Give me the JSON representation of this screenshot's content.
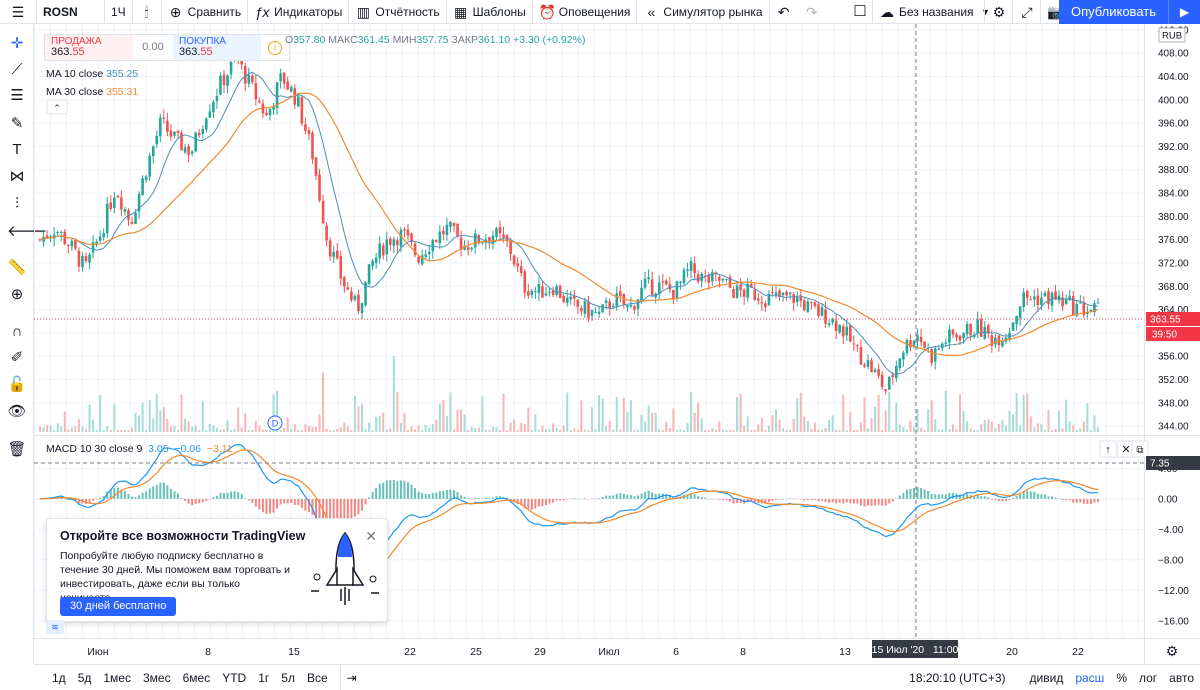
{
  "toolbar": {
    "menu_icon": "hamburger-icon",
    "symbol": "ROSN",
    "interval": "1Ч",
    "compare": "Сравнить",
    "indicators": "Индикаторы",
    "reports": "Отчётность",
    "templates": "Шаблоны",
    "alerts": "Оповещения",
    "replay": "Симулятор рынка",
    "layout_name": "Без названия",
    "publish": "Опубликовать"
  },
  "trade": {
    "sell_label": "ПРОДАЖА",
    "sell_int": "363.",
    "sell_dec": "55",
    "spread": "0.00",
    "buy_label": "ПОКУПКА",
    "buy_int": "363.",
    "buy_dec": "55"
  },
  "ohlc": {
    "o_label": "О",
    "o": "357.80",
    "h_label": "МАКС",
    "h": "361.45",
    "l_label": "МИН",
    "l": "357.75",
    "c_label": "ЗАКР",
    "c": "361.10",
    "chg": "+3.30 (+0.92%)"
  },
  "ma10": {
    "label": "MA 10 close",
    "value": "355.25",
    "color": "#4a90b8"
  },
  "ma30": {
    "label": "MA 30 close",
    "value": "355.31",
    "color": "#f28a2e"
  },
  "macd": {
    "label": "MACD 10 30 close 9",
    "v1": "3.05",
    "v2": "−0.06",
    "v3": "−3.11"
  },
  "currency": "RUB",
  "price_badge": "363.55",
  "time_badge": "39:50",
  "macd_badge": "7.35",
  "crosshair_date": "15 Июл '20   11:00",
  "dividend_marker": "D",
  "price_axis": [
    "412.00",
    "408.00",
    "404.00",
    "400.00",
    "396.00",
    "392.00",
    "388.00",
    "384.00",
    "380.00",
    "376.00",
    "372.00",
    "368.00",
    "364.00",
    "360.00",
    "356.00",
    "352.00",
    "348.00",
    "344.00"
  ],
  "macd_axis": [
    "4.00",
    "0.00",
    "−4.00",
    "−8.00",
    "−12.00",
    "−16.00"
  ],
  "time_axis": [
    "Июн",
    "8",
    "15",
    "22",
    "25",
    "29",
    "Июл",
    "6",
    "8",
    "13",
    "20",
    "22"
  ],
  "ranges": [
    "1д",
    "5д",
    "1мес",
    "3мес",
    "6мес",
    "YTD",
    "1г",
    "5л",
    "Все"
  ],
  "clock": "18:20:10 (UTC+3)",
  "scale_opts": [
    "дивид",
    "расш",
    "%",
    "лог",
    "авто"
  ],
  "promo": {
    "title": "Откройте все возможности TradingView",
    "text": "Попробуйте любую подписку бесплатно в течение 30 дней. Мы поможем вам торговать и инвестировать, даже если вы только начинаете.",
    "button": "30 дней бесплатно"
  },
  "chart_data": {
    "type": "candlestick",
    "symbol": "ROSN",
    "interval": "1Ч",
    "ylim": [
      343,
      413
    ],
    "price_path": [
      376,
      378,
      375,
      371,
      377,
      385,
      379,
      388,
      396,
      393,
      391,
      398,
      403,
      407,
      402,
      397,
      404,
      400,
      391,
      376,
      369,
      364,
      372,
      376,
      377,
      373,
      376,
      378,
      375,
      376,
      377,
      375,
      368,
      367,
      368,
      365,
      364,
      363,
      366,
      364,
      368,
      368,
      367,
      371,
      369,
      369,
      367,
      367,
      366,
      366,
      366,
      364,
      363,
      361,
      357,
      354,
      350,
      357,
      360,
      356,
      359,
      360,
      361,
      359,
      360,
      366,
      366,
      366,
      365,
      364,
      364
    ],
    "last": 363.55,
    "macd_ylim": [
      -18,
      8
    ]
  }
}
